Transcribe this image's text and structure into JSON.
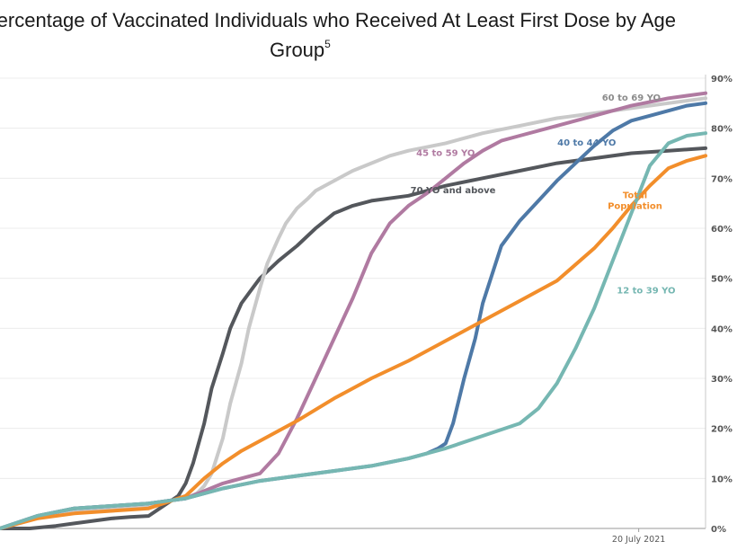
{
  "chart_data": {
    "type": "line",
    "title": "Percentage of Vaccinated Individuals who Received At Least First Dose by Age Group",
    "title_line1": "Percentage of Vaccinated Individuals who Received At Least First Dose by Age",
    "title_line2": "Group",
    "title_footnote": "5",
    "xlabel": "",
    "ylabel": "",
    "ylim": [
      0,
      90
    ],
    "y_ticks": [
      0,
      10,
      20,
      30,
      40,
      50,
      60,
      70,
      80,
      90
    ],
    "y_tick_labels": [
      "0%",
      "10%",
      "20%",
      "30%",
      "40%",
      "50%",
      "60%",
      "70%",
      "80%",
      "90%"
    ],
    "x_unit": "days since start of series (approx.)",
    "xlim": [
      0,
      190
    ],
    "x_annotation": {
      "x": 172,
      "label": "20 July 2021"
    },
    "grid": true,
    "legend": "none (inline labels)",
    "series": [
      {
        "name": "70 YO and above",
        "color": "#54575c",
        "label_at": [
          122,
          67
        ],
        "label_color": "#54575c",
        "x": [
          0,
          8,
          15,
          20,
          25,
          30,
          35,
          40,
          45,
          48,
          50,
          52,
          55,
          57,
          60,
          62,
          65,
          68,
          70,
          75,
          80,
          85,
          90,
          95,
          100,
          110,
          120,
          130,
          140,
          150,
          160,
          170,
          180,
          190
        ],
        "y": [
          0,
          0,
          0.5,
          1,
          1.5,
          2,
          2.3,
          2.5,
          5,
          6.5,
          9,
          13,
          21,
          28,
          35,
          40,
          45,
          48,
          50,
          53.5,
          56.5,
          60,
          63,
          64.5,
          65.5,
          66.5,
          68.5,
          70,
          71.5,
          73,
          74,
          75,
          75.5,
          76
        ]
      },
      {
        "name": "60 to 69 YO",
        "color": "#c9c9c9",
        "label_at": [
          170,
          85.5
        ],
        "label_color": "#8c8c8c",
        "x": [
          0,
          10,
          20,
          30,
          40,
          45,
          50,
          53,
          55,
          57,
          60,
          62,
          65,
          67,
          70,
          72,
          75,
          77,
          80,
          83,
          85,
          90,
          95,
          100,
          105,
          110,
          120,
          130,
          140,
          150,
          160,
          170,
          180,
          190
        ],
        "y": [
          0,
          2,
          3.5,
          4,
          4.5,
          5.5,
          6,
          7,
          8.5,
          11,
          18,
          25,
          33,
          40,
          48,
          53,
          58,
          61,
          64,
          66,
          67.5,
          69.5,
          71.5,
          73,
          74.5,
          75.5,
          77,
          79,
          80.5,
          82,
          83,
          84,
          85,
          86
        ]
      },
      {
        "name": "45 to 59 YO",
        "color": "#b07aa1",
        "label_at": [
          120,
          74.5
        ],
        "label_color": "#b07aa1",
        "x": [
          0,
          10,
          20,
          30,
          40,
          50,
          55,
          60,
          65,
          70,
          75,
          80,
          85,
          90,
          95,
          100,
          105,
          110,
          115,
          120,
          125,
          130,
          135,
          140,
          150,
          160,
          170,
          180,
          190
        ],
        "y": [
          0,
          2.5,
          4,
          4.5,
          5,
          6,
          7.5,
          9,
          10,
          11,
          15,
          22,
          30,
          38,
          46,
          55,
          61,
          64.5,
          67,
          70,
          73,
          75.5,
          77.5,
          78.5,
          80.5,
          82.5,
          84.5,
          86,
          87
        ]
      },
      {
        "name": "40 to 44 YO",
        "color": "#4e79a7",
        "label_at": [
          158,
          76.5
        ],
        "label_color": "#4e79a7",
        "x": [
          0,
          10,
          20,
          30,
          40,
          50,
          60,
          70,
          80,
          90,
          100,
          110,
          115,
          118,
          120,
          122,
          125,
          128,
          130,
          135,
          140,
          145,
          150,
          155,
          160,
          165,
          170,
          175,
          180,
          185,
          190
        ],
        "y": [
          0,
          2.5,
          4,
          4.5,
          5,
          6,
          8,
          9.5,
          10.5,
          11.5,
          12.5,
          14,
          15,
          16,
          17,
          21,
          30,
          38,
          45,
          56.5,
          61.5,
          65.5,
          69.5,
          73,
          76.5,
          79.5,
          81.5,
          82.5,
          83.5,
          84.5,
          85
        ]
      },
      {
        "name": "Total Population",
        "color": "#f28e2b",
        "label_at": [
          171,
          66
        ],
        "label_color": "#f28e2b",
        "x": [
          0,
          10,
          20,
          30,
          40,
          50,
          55,
          60,
          65,
          70,
          80,
          90,
          100,
          110,
          120,
          130,
          140,
          150,
          160,
          165,
          170,
          175,
          180,
          185,
          190
        ],
        "y": [
          0,
          2,
          3,
          3.5,
          4,
          6.5,
          10,
          13,
          15.5,
          17.5,
          21.5,
          26,
          30,
          33.5,
          37.5,
          41.5,
          45.5,
          49.5,
          56,
          60,
          64.5,
          68.5,
          72,
          73.5,
          74.5
        ]
      },
      {
        "name": "12 to 39 YO",
        "color": "#76b7b2",
        "label_at": [
          174,
          47
        ],
        "label_color": "#76b7b2",
        "x": [
          0,
          10,
          20,
          30,
          40,
          50,
          60,
          70,
          80,
          90,
          100,
          110,
          120,
          130,
          140,
          145,
          150,
          155,
          160,
          165,
          170,
          175,
          180,
          185,
          190
        ],
        "y": [
          0,
          2.5,
          4,
          4.5,
          5,
          6,
          8,
          9.5,
          10.5,
          11.5,
          12.5,
          14,
          16,
          18.5,
          21,
          24,
          29,
          36,
          44,
          53.5,
          63,
          72.5,
          77,
          78.5,
          79
        ]
      }
    ]
  }
}
